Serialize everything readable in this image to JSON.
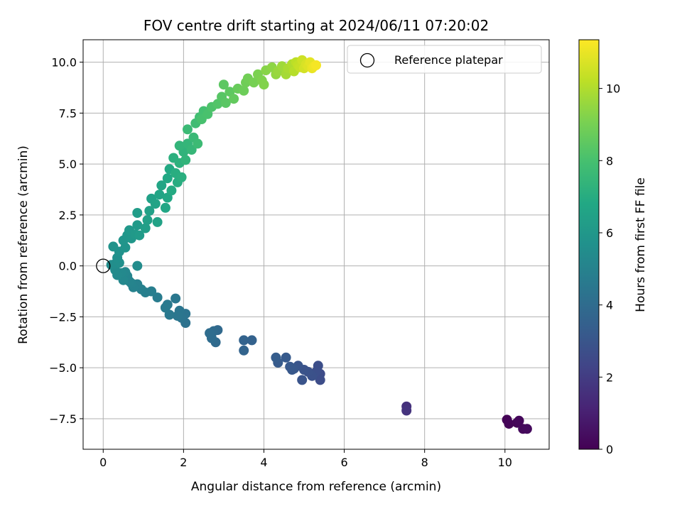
{
  "chart_data": {
    "type": "scatter",
    "title": "FOV centre drift starting at 2024/06/11 07:20:02",
    "xlabel": "Angular distance from reference (arcmin)",
    "ylabel": "Rotation from reference (arcmin)",
    "xlim": [
      -0.5,
      11.1
    ],
    "ylim": [
      -9.0,
      11.1
    ],
    "xticks": [
      0,
      2,
      4,
      6,
      8,
      10
    ],
    "yticks": [
      -7.5,
      -5.0,
      -2.5,
      0.0,
      2.5,
      5.0,
      7.5,
      10.0
    ],
    "xtick_labels": [
      "0",
      "2",
      "4",
      "6",
      "8",
      "10"
    ],
    "ytick_labels": [
      "−7.5",
      "−5.0",
      "−2.5",
      "0.0",
      "2.5",
      "5.0",
      "7.5",
      "10.0"
    ],
    "grid": true,
    "legend": {
      "placement": "top-right",
      "entries": [
        "Reference platepar"
      ]
    },
    "reference_point": {
      "x": 0,
      "y": 0
    },
    "colorbar": {
      "label": "Hours from first FF file",
      "colormap": "viridis",
      "range": [
        0,
        11.35
      ],
      "ticks": [
        0,
        2,
        4,
        6,
        8,
        10
      ],
      "tick_labels": [
        "0",
        "2",
        "4",
        "6",
        "8",
        "10"
      ]
    },
    "series": [
      {
        "points": [
          [
            10.05,
            -7.55,
            0.05
          ],
          [
            10.1,
            -7.75,
            0.1
          ],
          [
            10.3,
            -7.7,
            0.15
          ],
          [
            10.35,
            -7.6,
            0.2
          ],
          [
            10.45,
            -8.0,
            0.25
          ],
          [
            10.55,
            -8.0,
            0.3
          ],
          [
            7.55,
            -6.9,
            1.6
          ],
          [
            7.55,
            -7.1,
            1.7
          ],
          [
            5.4,
            -5.3,
            2.6
          ],
          [
            5.4,
            -5.6,
            2.65
          ],
          [
            5.35,
            -4.9,
            2.7
          ],
          [
            5.3,
            -5.2,
            2.75
          ],
          [
            5.2,
            -5.4,
            2.8
          ],
          [
            5.1,
            -5.2,
            2.85
          ],
          [
            5.0,
            -5.1,
            2.9
          ],
          [
            4.95,
            -5.6,
            2.95
          ],
          [
            4.85,
            -4.9,
            3.0
          ],
          [
            4.75,
            -5.05,
            3.05
          ],
          [
            4.7,
            -5.1,
            3.1
          ],
          [
            4.65,
            -4.95,
            3.15
          ],
          [
            4.55,
            -4.5,
            3.2
          ],
          [
            4.35,
            -4.75,
            3.25
          ],
          [
            4.3,
            -4.5,
            3.3
          ],
          [
            3.7,
            -3.65,
            3.55
          ],
          [
            3.5,
            -3.65,
            3.6
          ],
          [
            3.5,
            -4.15,
            3.65
          ],
          [
            2.85,
            -3.15,
            3.85
          ],
          [
            2.8,
            -3.75,
            3.9
          ],
          [
            2.75,
            -3.2,
            3.95
          ],
          [
            2.7,
            -3.55,
            4.0
          ],
          [
            2.65,
            -3.3,
            4.05
          ],
          [
            2.05,
            -2.8,
            4.25
          ],
          [
            2.05,
            -2.35,
            4.3
          ],
          [
            1.95,
            -2.55,
            4.35
          ],
          [
            1.9,
            -2.2,
            4.4
          ],
          [
            1.85,
            -2.45,
            4.45
          ],
          [
            1.8,
            -1.6,
            4.5
          ],
          [
            1.65,
            -2.4,
            4.55
          ],
          [
            1.6,
            -1.9,
            4.6
          ],
          [
            1.55,
            -2.05,
            4.65
          ],
          [
            1.35,
            -1.55,
            4.7
          ],
          [
            1.2,
            -1.25,
            4.8
          ],
          [
            1.05,
            -1.3,
            4.85
          ],
          [
            0.95,
            -1.15,
            4.9
          ],
          [
            0.85,
            -0.9,
            4.95
          ],
          [
            0.75,
            -1.05,
            5.0
          ],
          [
            0.7,
            -0.85,
            5.05
          ],
          [
            0.65,
            -0.75,
            5.1
          ],
          [
            0.6,
            -0.5,
            5.15
          ],
          [
            0.55,
            -0.3,
            5.2
          ],
          [
            0.5,
            -0.7,
            5.25
          ],
          [
            0.45,
            -0.35,
            5.3
          ],
          [
            0.35,
            -0.45,
            5.35
          ],
          [
            0.3,
            -0.2,
            5.4
          ],
          [
            0.85,
            0.0,
            5.45
          ],
          [
            0.2,
            0.05,
            5.5
          ],
          [
            0.3,
            0.1,
            5.55
          ],
          [
            0.4,
            0.15,
            5.6
          ],
          [
            0.35,
            0.4,
            5.65
          ],
          [
            0.4,
            0.7,
            5.7
          ],
          [
            0.25,
            0.95,
            5.75
          ],
          [
            0.55,
            0.9,
            5.8
          ],
          [
            0.5,
            1.25,
            5.85
          ],
          [
            0.6,
            1.5,
            5.9
          ],
          [
            0.7,
            1.35,
            5.95
          ],
          [
            0.65,
            1.75,
            6.0
          ],
          [
            0.8,
            1.55,
            6.05
          ],
          [
            0.85,
            2.0,
            6.1
          ],
          [
            0.9,
            1.5,
            6.15
          ],
          [
            0.85,
            2.6,
            6.2
          ],
          [
            1.05,
            1.85,
            6.3
          ],
          [
            1.1,
            2.25,
            6.35
          ],
          [
            1.15,
            2.7,
            6.4
          ],
          [
            1.2,
            3.3,
            6.45
          ],
          [
            1.35,
            2.15,
            6.5
          ],
          [
            1.3,
            3.05,
            6.55
          ],
          [
            1.4,
            3.5,
            6.6
          ],
          [
            1.45,
            3.95,
            6.65
          ],
          [
            1.55,
            2.85,
            6.7
          ],
          [
            1.6,
            3.35,
            6.75
          ],
          [
            1.6,
            4.3,
            6.8
          ],
          [
            1.65,
            4.75,
            6.85
          ],
          [
            1.7,
            3.7,
            6.9
          ],
          [
            1.85,
            4.1,
            7.0
          ],
          [
            1.8,
            4.55,
            7.05
          ],
          [
            1.95,
            4.35,
            7.1
          ],
          [
            1.75,
            5.3,
            7.15
          ],
          [
            1.9,
            5.05,
            7.2
          ],
          [
            2.0,
            5.6,
            7.3
          ],
          [
            2.05,
            5.2,
            7.35
          ],
          [
            1.9,
            5.9,
            7.4
          ],
          [
            2.1,
            6.0,
            7.45
          ],
          [
            2.2,
            5.7,
            7.5
          ],
          [
            2.25,
            6.3,
            7.6
          ],
          [
            2.1,
            6.7,
            7.65
          ],
          [
            2.35,
            6.0,
            7.7
          ],
          [
            2.3,
            7.0,
            7.8
          ],
          [
            2.4,
            7.3,
            7.85
          ],
          [
            2.5,
            7.6,
            7.95
          ],
          [
            2.45,
            7.2,
            8.0
          ],
          [
            2.6,
            7.45,
            8.05
          ],
          [
            2.7,
            7.8,
            8.15
          ],
          [
            2.85,
            7.95,
            8.25
          ],
          [
            2.95,
            8.3,
            8.35
          ],
          [
            3.05,
            8.0,
            8.4
          ],
          [
            3.0,
            8.9,
            8.45
          ],
          [
            3.15,
            8.55,
            8.5
          ],
          [
            3.25,
            8.2,
            8.6
          ],
          [
            3.35,
            8.7,
            8.7
          ],
          [
            3.5,
            8.6,
            8.8
          ],
          [
            3.55,
            9.0,
            8.85
          ],
          [
            3.6,
            9.2,
            8.9
          ],
          [
            3.75,
            9.0,
            9.0
          ],
          [
            3.85,
            9.4,
            9.1
          ],
          [
            3.95,
            9.1,
            9.15
          ],
          [
            4.0,
            8.9,
            9.2
          ],
          [
            4.05,
            9.6,
            9.3
          ],
          [
            4.2,
            9.75,
            9.4
          ],
          [
            4.3,
            9.4,
            9.5
          ],
          [
            4.35,
            9.55,
            9.6
          ],
          [
            4.45,
            9.8,
            9.7
          ],
          [
            4.55,
            9.4,
            9.8
          ],
          [
            4.6,
            9.7,
            9.9
          ],
          [
            4.7,
            9.9,
            10.0
          ],
          [
            4.75,
            9.55,
            10.1
          ],
          [
            4.8,
            10.0,
            10.2
          ],
          [
            4.85,
            9.85,
            10.3
          ],
          [
            4.9,
            9.75,
            10.4
          ],
          [
            4.95,
            10.1,
            10.5
          ],
          [
            5.0,
            9.7,
            10.6
          ],
          [
            5.05,
            9.9,
            10.7
          ],
          [
            5.1,
            9.8,
            10.8
          ],
          [
            5.15,
            10.0,
            10.9
          ],
          [
            5.2,
            9.7,
            11.0
          ],
          [
            5.25,
            9.8,
            11.1
          ],
          [
            5.3,
            9.85,
            11.2
          ]
        ]
      }
    ]
  }
}
